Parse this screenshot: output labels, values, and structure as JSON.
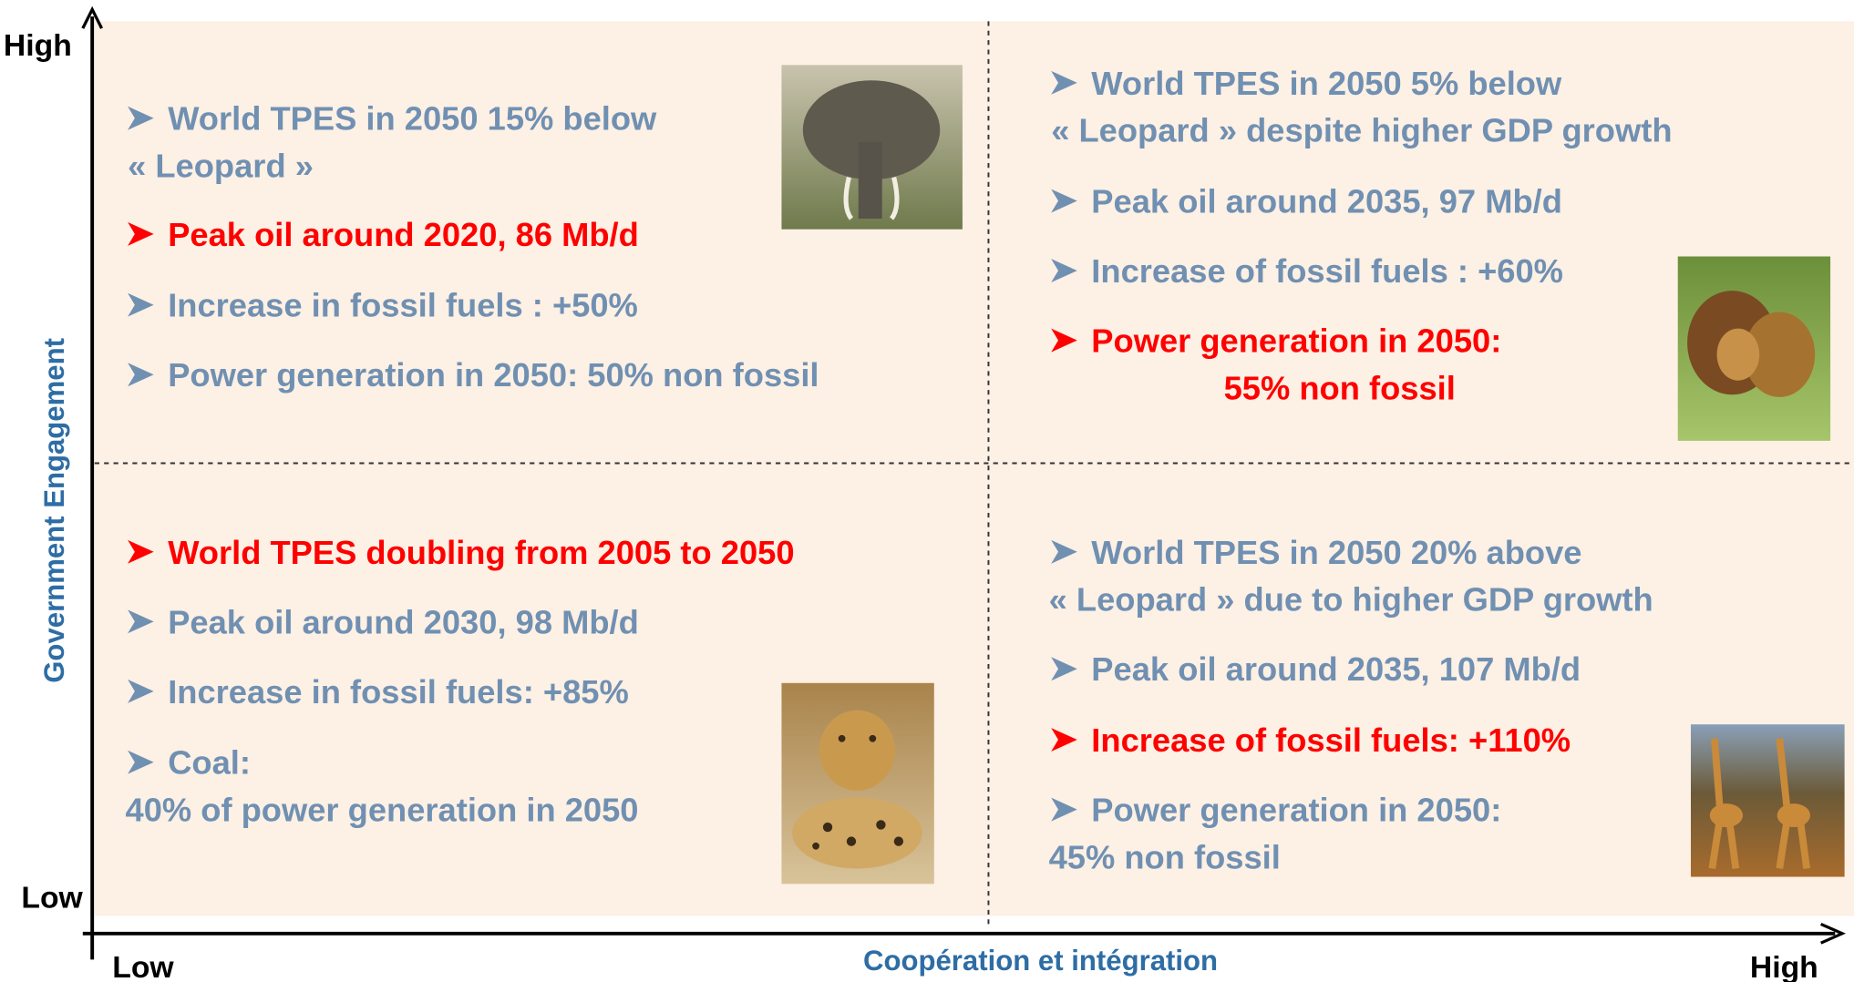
{
  "y_axis": {
    "title": "Government Engagement",
    "high": "High",
    "low": "Low"
  },
  "x_axis": {
    "title": "Coopération et intégration",
    "low": "Low",
    "high": "High"
  },
  "quadrants": [
    {
      "items": [
        {
          "lines": [
            "World TPES in 2050 15% below",
            "« Leopard »"
          ],
          "emphasis": false
        },
        {
          "lines": [
            "Peak oil around 2020, 86 Mb/d"
          ],
          "emphasis": true
        },
        {
          "lines": [
            "Increase in fossil fuels : +50%"
          ],
          "emphasis": false
        },
        {
          "lines": [
            "Power generation in 2050: 50% non fossil"
          ],
          "emphasis": false
        }
      ]
    },
    {
      "items": [
        {
          "lines": [
            "World TPES in 2050 5% below",
            "« Leopard » despite higher GDP growth"
          ],
          "emphasis": false
        },
        {
          "lines": [
            "Peak oil around 2035, 97 Mb/d"
          ],
          "emphasis": false
        },
        {
          "lines": [
            "Increase of fossil fuels : +60%"
          ],
          "emphasis": false
        },
        {
          "lines": [
            "Power generation in 2050:",
            "55% non fossil"
          ],
          "emphasis": true
        }
      ]
    },
    {
      "items": [
        {
          "lines": [
            "World TPES doubling from 2005 to 2050"
          ],
          "emphasis": true
        },
        {
          "lines": [
            "Peak oil around 2030, 98 Mb/d"
          ],
          "emphasis": false
        },
        {
          "lines": [
            "Increase in fossil fuels: +85%"
          ],
          "emphasis": false
        },
        {
          "lines": [
            "Coal:",
            "40% of power generation in 2050"
          ],
          "emphasis": false
        }
      ]
    },
    {
      "items": [
        {
          "lines": [
            "World TPES in 2050 20% above",
            "« Leopard » due to higher GDP growth"
          ],
          "emphasis": false
        },
        {
          "lines": [
            "Peak oil around 2035, 107 Mb/d"
          ],
          "emphasis": false
        },
        {
          "lines": [
            "Increase of fossil fuels: +110%"
          ],
          "emphasis": true
        },
        {
          "lines": [
            "Power generation in 2050:",
            "45% non fossil"
          ],
          "emphasis": false
        }
      ]
    }
  ]
}
